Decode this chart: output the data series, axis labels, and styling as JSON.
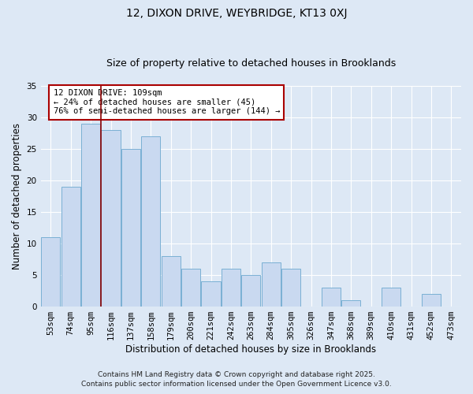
{
  "title": "12, DIXON DRIVE, WEYBRIDGE, KT13 0XJ",
  "subtitle": "Size of property relative to detached houses in Brooklands",
  "xlabel": "Distribution of detached houses by size in Brooklands",
  "ylabel": "Number of detached properties",
  "categories": [
    "53sqm",
    "74sqm",
    "95sqm",
    "116sqm",
    "137sqm",
    "158sqm",
    "179sqm",
    "200sqm",
    "221sqm",
    "242sqm",
    "263sqm",
    "284sqm",
    "305sqm",
    "326sqm",
    "347sqm",
    "368sqm",
    "389sqm",
    "410sqm",
    "431sqm",
    "452sqm",
    "473sqm"
  ],
  "values": [
    11,
    19,
    29,
    28,
    25,
    27,
    8,
    6,
    4,
    6,
    5,
    7,
    6,
    0,
    3,
    1,
    0,
    3,
    0,
    2,
    0
  ],
  "bar_color": "#c9d9f0",
  "bar_edge_color": "#7ab0d4",
  "red_line_x": 2.5,
  "red_line_color": "#8b0000",
  "ylim": [
    0,
    35
  ],
  "yticks": [
    0,
    5,
    10,
    15,
    20,
    25,
    30,
    35
  ],
  "annotation_title": "12 DIXON DRIVE: 109sqm",
  "annotation_line1": "← 24% of detached houses are smaller (45)",
  "annotation_line2": "76% of semi-detached houses are larger (144) →",
  "annotation_box_color": "#ffffff",
  "annotation_box_edge_color": "#aa0000",
  "footer1": "Contains HM Land Registry data © Crown copyright and database right 2025.",
  "footer2": "Contains public sector information licensed under the Open Government Licence v3.0.",
  "background_color": "#dde8f5",
  "plot_bg_color": "#dde8f5",
  "grid_color": "#ffffff",
  "title_fontsize": 10,
  "subtitle_fontsize": 9,
  "axis_label_fontsize": 8.5,
  "tick_fontsize": 7.5,
  "annotation_fontsize": 7.5,
  "footer_fontsize": 6.5
}
